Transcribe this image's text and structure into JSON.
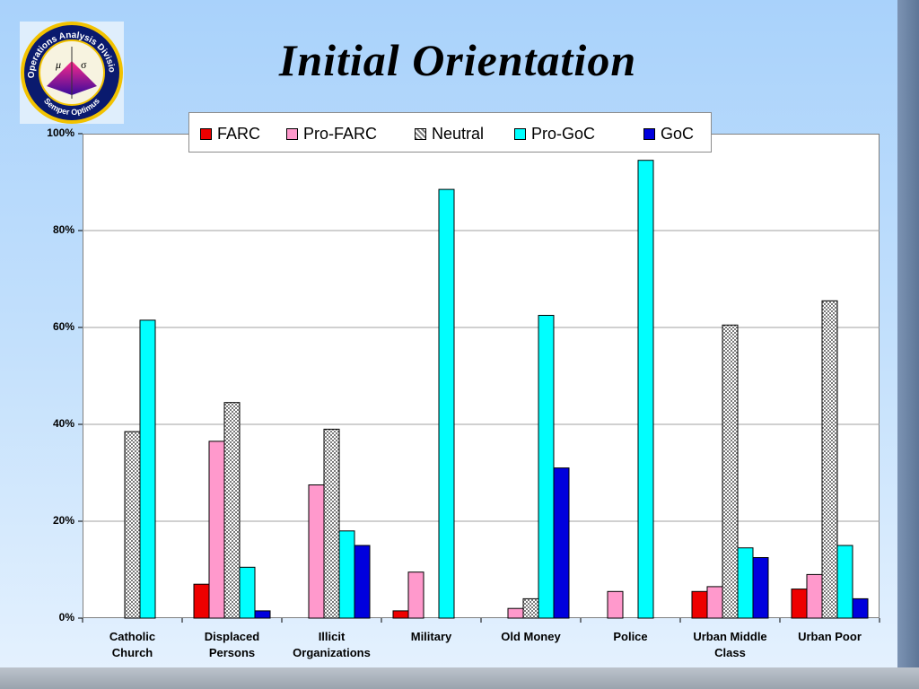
{
  "title": "Initial Orientation",
  "logo": {
    "ring_text": "Operations Analysis Division",
    "motto": "Semper Optimus",
    "symbols": [
      "μ",
      "σ"
    ]
  },
  "colors": {
    "FARC": "#ee0000",
    "Pro-FARC": "#ff99cc",
    "Neutral": "#c8c8c8",
    "Pro-GoC": "#00ffff",
    "GoC": "#0000dd"
  },
  "chart_data": {
    "type": "bar",
    "title": "",
    "xlabel": "",
    "ylabel": "",
    "ylim": [
      0,
      100
    ],
    "yticks": [
      "0%",
      "20%",
      "40%",
      "60%",
      "80%",
      "100%"
    ],
    "grid": true,
    "legend_position": "top",
    "categories": [
      "Catholic Church",
      "Displaced Persons",
      "Illicit Organizations",
      "Military",
      "Old Money",
      "Police",
      "Urban Middle Class",
      "Urban Poor"
    ],
    "category_labels": [
      "Catholic\nChurch",
      "Displaced\nPersons",
      "Illicit\nOrganizations",
      "Military",
      "Old Money",
      "Police",
      "Urban Middle\nClass",
      "Urban Poor"
    ],
    "series": [
      {
        "name": "FARC",
        "values": [
          0,
          7,
          0,
          1.5,
          0,
          0,
          5.5,
          6
        ]
      },
      {
        "name": "Pro-FARC",
        "values": [
          0,
          36.5,
          27.5,
          9.5,
          2,
          5.5,
          6.5,
          9
        ]
      },
      {
        "name": "Neutral",
        "values": [
          38.5,
          44.5,
          39,
          0,
          4,
          0,
          60.5,
          65.5
        ]
      },
      {
        "name": "Pro-GoC",
        "values": [
          61.5,
          10.5,
          18,
          88.5,
          62.5,
          94.5,
          14.5,
          15
        ]
      },
      {
        "name": "GoC",
        "values": [
          0,
          1.5,
          15,
          0,
          31,
          0,
          12.5,
          4
        ]
      }
    ]
  }
}
